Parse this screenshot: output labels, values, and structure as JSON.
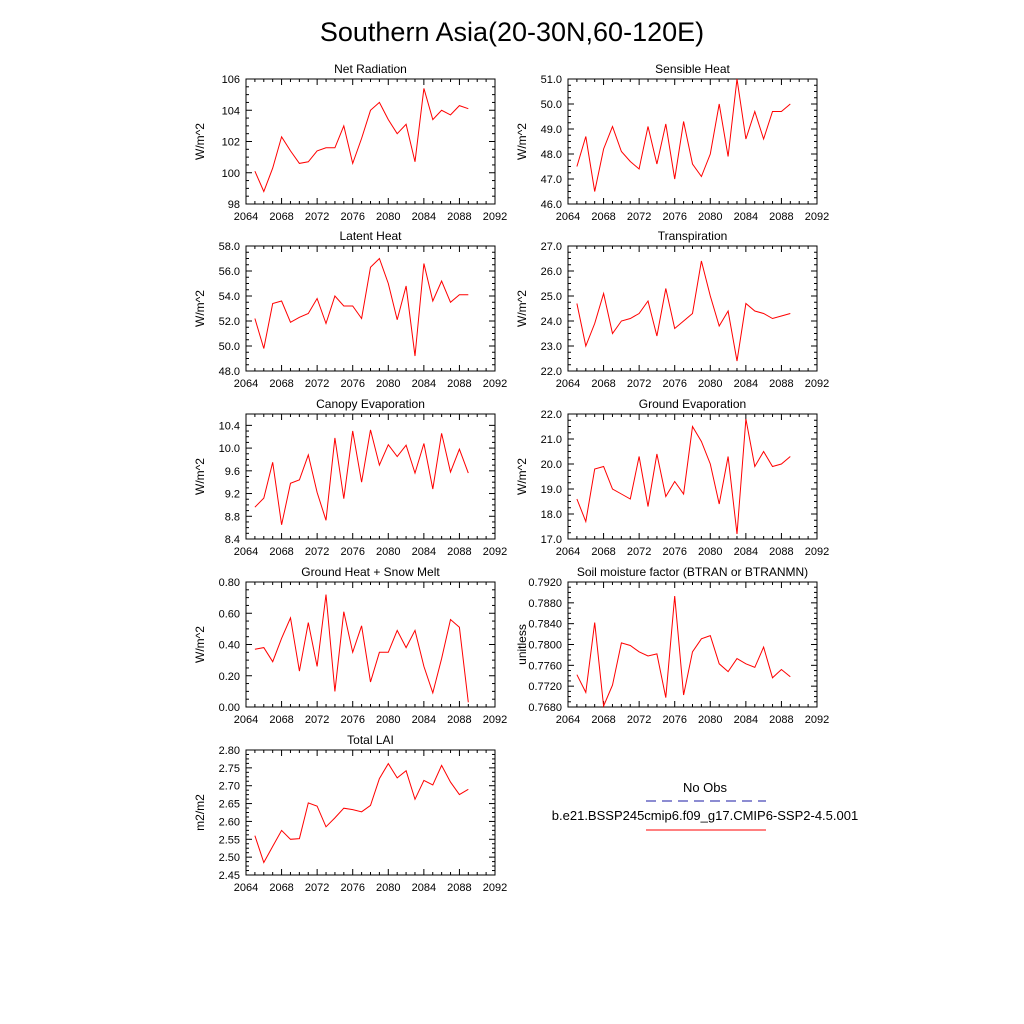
{
  "title": "Southern Asia(20-30N,60-120E)",
  "colors": {
    "model": "#ff0000",
    "obs": "#1a1aa6",
    "axis": "#000000"
  },
  "legend": {
    "obs_label": "No Obs",
    "model_label": "b.e21.BSSP245cmip6.f09_g17.CMIP6-SSP2-4.5.001"
  },
  "chart_data": [
    {
      "type": "line",
      "title": "Net Radiation",
      "ylabel": "W/m^2",
      "xlabel": "",
      "xlim": [
        2064,
        2092
      ],
      "xticks": [
        "2064",
        "2068",
        "2072",
        "2076",
        "2080",
        "2084",
        "2088",
        "2092"
      ],
      "ylim": [
        98,
        106
      ],
      "yticks": [
        "98",
        "100",
        "102",
        "104",
        "106"
      ],
      "series": [
        {
          "x": [
            2065,
            2066,
            2067,
            2068,
            2069,
            2070,
            2071,
            2072,
            2073,
            2074,
            2075,
            2076,
            2077,
            2078,
            2079,
            2080,
            2081,
            2082,
            2083,
            2084,
            2085,
            2086,
            2087,
            2088,
            2089
          ],
          "values": [
            100.1,
            98.8,
            100.3,
            102.3,
            101.4,
            100.6,
            100.7,
            101.4,
            101.6,
            101.6,
            103.0,
            100.6,
            102.2,
            104.0,
            104.5,
            103.4,
            102.5,
            103.1,
            100.7,
            105.4,
            103.4,
            104.0,
            103.7,
            104.3,
            104.1
          ]
        }
      ]
    },
    {
      "type": "line",
      "title": "Sensible Heat",
      "ylabel": "W/m^2",
      "xlabel": "",
      "xlim": [
        2064,
        2092
      ],
      "xticks": [
        "2064",
        "2068",
        "2072",
        "2076",
        "2080",
        "2084",
        "2088",
        "2092"
      ],
      "ylim": [
        46,
        51
      ],
      "yticks": [
        "46.0",
        "47.0",
        "48.0",
        "49.0",
        "50.0",
        "51.0"
      ],
      "series": [
        {
          "x": [
            2065,
            2066,
            2067,
            2068,
            2069,
            2070,
            2071,
            2072,
            2073,
            2074,
            2075,
            2076,
            2077,
            2078,
            2079,
            2080,
            2081,
            2082,
            2083,
            2084,
            2085,
            2086,
            2087,
            2088,
            2089
          ],
          "values": [
            47.5,
            48.7,
            46.5,
            48.2,
            49.1,
            48.1,
            47.7,
            47.4,
            49.1,
            47.6,
            49.2,
            47.0,
            49.3,
            47.6,
            47.1,
            48.0,
            50.0,
            47.9,
            51.0,
            48.6,
            49.7,
            48.6,
            49.7,
            49.7,
            50.0
          ]
        }
      ]
    },
    {
      "type": "line",
      "title": "Latent Heat",
      "ylabel": "W/m^2",
      "xlabel": "",
      "xlim": [
        2064,
        2092
      ],
      "xticks": [
        "2064",
        "2068",
        "2072",
        "2076",
        "2080",
        "2084",
        "2088",
        "2092"
      ],
      "ylim": [
        48,
        58
      ],
      "yticks": [
        "48.0",
        "50.0",
        "52.0",
        "54.0",
        "56.0",
        "58.0"
      ],
      "series": [
        {
          "x": [
            2065,
            2066,
            2067,
            2068,
            2069,
            2070,
            2071,
            2072,
            2073,
            2074,
            2075,
            2076,
            2077,
            2078,
            2079,
            2080,
            2081,
            2082,
            2083,
            2084,
            2085,
            2086,
            2087,
            2088,
            2089
          ],
          "values": [
            52.2,
            49.8,
            53.4,
            53.6,
            51.9,
            52.3,
            52.6,
            53.8,
            51.8,
            54.0,
            53.2,
            53.2,
            52.2,
            56.3,
            57.0,
            55.0,
            52.1,
            54.8,
            49.2,
            56.6,
            53.6,
            55.2,
            53.5,
            54.1,
            54.1
          ]
        }
      ]
    },
    {
      "type": "line",
      "title": "Transpiration",
      "ylabel": "W/m^2",
      "xlabel": "",
      "xlim": [
        2064,
        2092
      ],
      "xticks": [
        "2064",
        "2068",
        "2072",
        "2076",
        "2080",
        "2084",
        "2088",
        "2092"
      ],
      "ylim": [
        22,
        27
      ],
      "yticks": [
        "22.0",
        "23.0",
        "24.0",
        "25.0",
        "26.0",
        "27.0"
      ],
      "series": [
        {
          "x": [
            2065,
            2066,
            2067,
            2068,
            2069,
            2070,
            2071,
            2072,
            2073,
            2074,
            2075,
            2076,
            2077,
            2078,
            2079,
            2080,
            2081,
            2082,
            2083,
            2084,
            2085,
            2086,
            2087,
            2088,
            2089
          ],
          "values": [
            24.7,
            23.0,
            23.9,
            25.1,
            23.5,
            24.0,
            24.1,
            24.3,
            24.8,
            23.4,
            25.3,
            23.7,
            24.0,
            24.3,
            26.4,
            25.0,
            23.8,
            24.4,
            22.4,
            24.7,
            24.4,
            24.3,
            24.1,
            24.2,
            24.3
          ]
        }
      ]
    },
    {
      "type": "line",
      "title": "Canopy Evaporation",
      "ylabel": "W/m^2",
      "xlabel": "",
      "xlim": [
        2064,
        2092
      ],
      "xticks": [
        "2064",
        "2068",
        "2072",
        "2076",
        "2080",
        "2084",
        "2088",
        "2092"
      ],
      "ylim": [
        8.4,
        10.6
      ],
      "yticks": [
        "8.4",
        "8.8",
        "9.2",
        "9.6",
        "10.0",
        "10.4"
      ],
      "series": [
        {
          "x": [
            2065,
            2066,
            2067,
            2068,
            2069,
            2070,
            2071,
            2072,
            2073,
            2074,
            2075,
            2076,
            2077,
            2078,
            2079,
            2080,
            2081,
            2082,
            2083,
            2084,
            2085,
            2086,
            2087,
            2088,
            2089
          ],
          "values": [
            8.96,
            9.12,
            9.75,
            8.65,
            9.38,
            9.44,
            9.88,
            9.22,
            8.73,
            10.18,
            9.11,
            10.3,
            9.4,
            10.32,
            9.7,
            10.06,
            9.85,
            10.05,
            9.56,
            10.08,
            9.28,
            10.26,
            9.58,
            9.98,
            9.56
          ]
        }
      ]
    },
    {
      "type": "line",
      "title": "Ground Evaporation",
      "ylabel": "W/m^2",
      "xlabel": "",
      "xlim": [
        2064,
        2092
      ],
      "xticks": [
        "2064",
        "2068",
        "2072",
        "2076",
        "2080",
        "2084",
        "2088",
        "2092"
      ],
      "ylim": [
        17,
        22
      ],
      "yticks": [
        "17.0",
        "18.0",
        "19.0",
        "20.0",
        "21.0",
        "22.0"
      ],
      "series": [
        {
          "x": [
            2065,
            2066,
            2067,
            2068,
            2069,
            2070,
            2071,
            2072,
            2073,
            2074,
            2075,
            2076,
            2077,
            2078,
            2079,
            2080,
            2081,
            2082,
            2083,
            2084,
            2085,
            2086,
            2087,
            2088,
            2089
          ],
          "values": [
            18.6,
            17.7,
            19.8,
            19.9,
            19.0,
            18.8,
            18.6,
            20.3,
            18.3,
            20.4,
            18.7,
            19.3,
            18.8,
            21.5,
            20.9,
            20.0,
            18.4,
            20.3,
            17.2,
            21.8,
            19.9,
            20.5,
            19.9,
            20.0,
            20.3
          ]
        }
      ]
    },
    {
      "type": "line",
      "title": "Ground Heat + Snow Melt",
      "ylabel": "W/m^2",
      "xlabel": "",
      "xlim": [
        2064,
        2092
      ],
      "xticks": [
        "2064",
        "2068",
        "2072",
        "2076",
        "2080",
        "2084",
        "2088",
        "2092"
      ],
      "ylim": [
        0,
        0.8
      ],
      "yticks": [
        "0.00",
        "0.20",
        "0.40",
        "0.60",
        "0.80"
      ],
      "series": [
        {
          "x": [
            2065,
            2066,
            2067,
            2068,
            2069,
            2070,
            2071,
            2072,
            2073,
            2074,
            2075,
            2076,
            2077,
            2078,
            2079,
            2080,
            2081,
            2082,
            2083,
            2084,
            2085,
            2086,
            2087,
            2088,
            2089
          ],
          "values": [
            0.37,
            0.38,
            0.29,
            0.44,
            0.57,
            0.23,
            0.54,
            0.26,
            0.72,
            0.1,
            0.61,
            0.35,
            0.52,
            0.16,
            0.35,
            0.35,
            0.49,
            0.38,
            0.49,
            0.26,
            0.09,
            0.31,
            0.56,
            0.51,
            0.03
          ]
        }
      ]
    },
    {
      "type": "line",
      "title": "Soil moisture factor (BTRAN or BTRANMN)",
      "ylabel": "unitless",
      "xlabel": "",
      "xlim": [
        2064,
        2092
      ],
      "xticks": [
        "2064",
        "2068",
        "2072",
        "2076",
        "2080",
        "2084",
        "2088",
        "2092"
      ],
      "ylim": [
        0.768,
        0.792
      ],
      "yticks": [
        "0.7680",
        "0.7720",
        "0.7760",
        "0.7800",
        "0.7840",
        "0.7880",
        "0.7920"
      ],
      "series": [
        {
          "x": [
            2065,
            2066,
            2067,
            2068,
            2069,
            2070,
            2071,
            2072,
            2073,
            2074,
            2075,
            2076,
            2077,
            2078,
            2079,
            2080,
            2081,
            2082,
            2083,
            2084,
            2085,
            2086,
            2087,
            2088,
            2089
          ],
          "values": [
            0.7742,
            0.7708,
            0.7842,
            0.7682,
            0.7722,
            0.7803,
            0.7798,
            0.7786,
            0.7778,
            0.7782,
            0.7698,
            0.7893,
            0.7703,
            0.7786,
            0.7811,
            0.7817,
            0.7763,
            0.7748,
            0.7773,
            0.7763,
            0.7756,
            0.7795,
            0.7736,
            0.7752,
            0.7738
          ]
        }
      ]
    },
    {
      "type": "line",
      "title": "Total LAI",
      "ylabel": "m2/m2",
      "xlabel": "",
      "xlim": [
        2064,
        2092
      ],
      "xticks": [
        "2064",
        "2068",
        "2072",
        "2076",
        "2080",
        "2084",
        "2088",
        "2092"
      ],
      "ylim": [
        2.45,
        2.8
      ],
      "yticks": [
        "2.45",
        "2.50",
        "2.55",
        "2.60",
        "2.65",
        "2.70",
        "2.75",
        "2.80"
      ],
      "series": [
        {
          "x": [
            2065,
            2066,
            2067,
            2068,
            2069,
            2070,
            2071,
            2072,
            2073,
            2074,
            2075,
            2076,
            2077,
            2078,
            2079,
            2080,
            2081,
            2082,
            2083,
            2084,
            2085,
            2086,
            2087,
            2088,
            2089
          ],
          "values": [
            2.56,
            2.485,
            2.53,
            2.575,
            2.55,
            2.552,
            2.652,
            2.643,
            2.585,
            2.61,
            2.637,
            2.633,
            2.627,
            2.645,
            2.72,
            2.762,
            2.722,
            2.742,
            2.662,
            2.715,
            2.702,
            2.757,
            2.71,
            2.675,
            2.69
          ]
        }
      ]
    }
  ]
}
